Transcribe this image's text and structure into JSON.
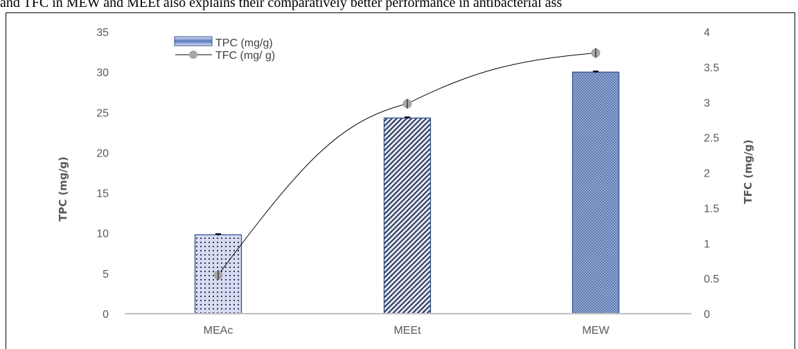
{
  "page": {
    "top_text": "and TFC in MEW and MEEt also explains their comparatively better performance in antibacterial ass"
  },
  "chart_data": {
    "type": "bar",
    "categories": [
      "MEAc",
      "MEEt",
      "MEW"
    ],
    "series": [
      {
        "name": "TPC  (mg/g)",
        "type": "bar",
        "axis": "left",
        "values": [
          9.8,
          24.3,
          30.0
        ],
        "error": [
          0.1,
          0.1,
          0.1
        ],
        "color": "#8faadc"
      },
      {
        "name": "TFC (mg/ g)",
        "type": "line",
        "axis": "right",
        "values": [
          0.55,
          2.98,
          3.7
        ],
        "error": [
          0.07,
          0.07,
          0.07
        ],
        "color": "#000000",
        "marker_color": "#a6a6a6"
      }
    ],
    "ylabel": "TPC (mg/g)",
    "y2label": "TFC (mg/g)",
    "ylim": [
      0,
      35
    ],
    "y2lim": [
      0,
      4
    ],
    "yticks": [
      "0",
      "5",
      "10",
      "15",
      "20",
      "25",
      "30",
      "35"
    ],
    "y2ticks": [
      "0",
      "0.5",
      "1",
      "1.5",
      "2",
      "2.5",
      "3",
      "3.5",
      "4"
    ],
    "legend_position": "top-left",
    "grid": false
  }
}
